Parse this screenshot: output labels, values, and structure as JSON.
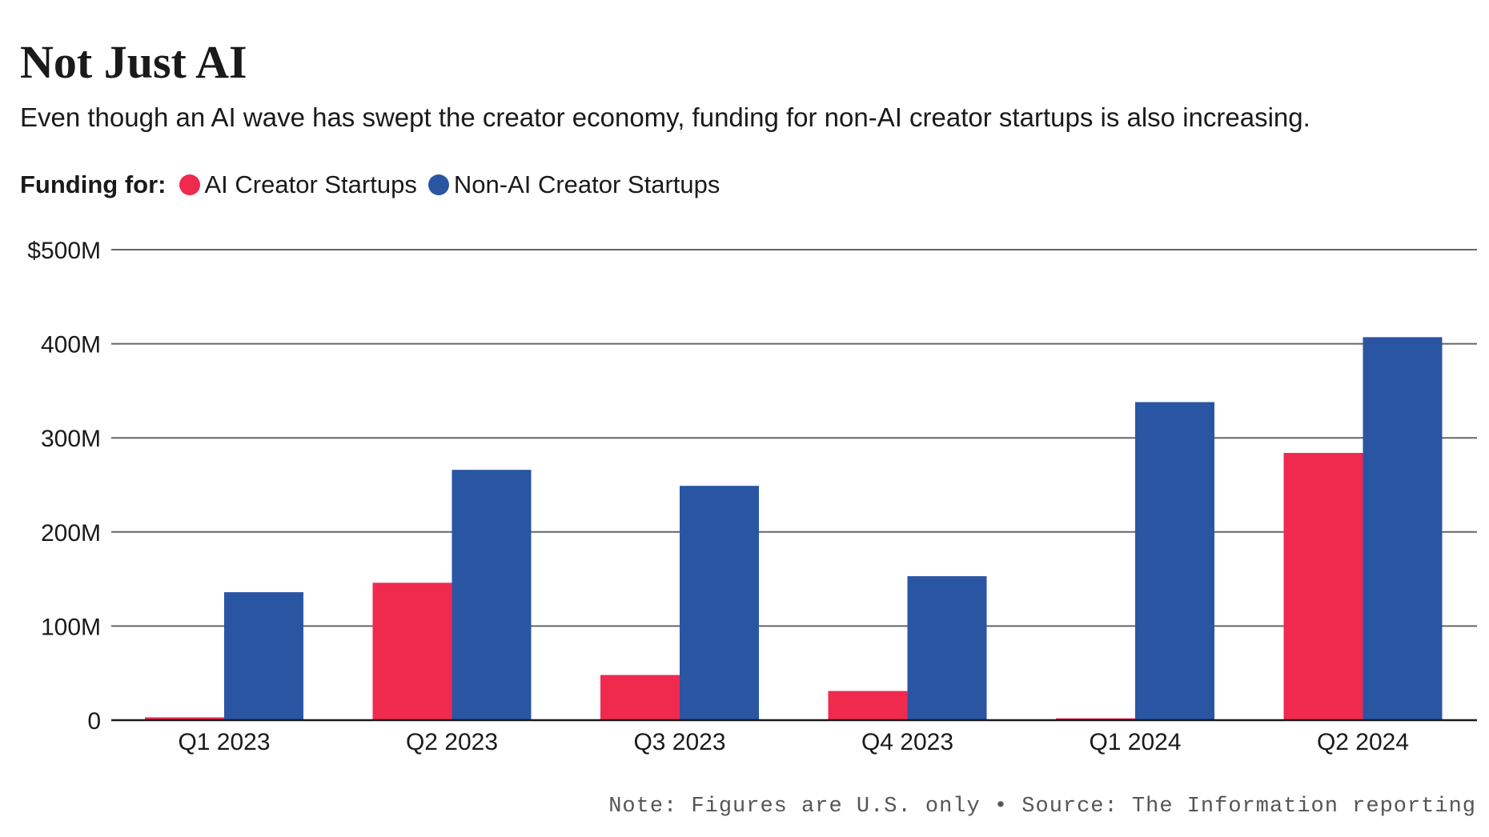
{
  "chart_data": {
    "type": "bar",
    "title": "Not Just AI",
    "subtitle": "Even though an AI wave has swept the creator economy, funding for non-AI creator startups is also increasing.",
    "legend_label": "Funding for:",
    "legend_placement": "top-left",
    "categories": [
      "Q1 2023",
      "Q2 2023",
      "Q3 2023",
      "Q4 2023",
      "Q1 2024",
      "Q2 2024"
    ],
    "series": [
      {
        "name": "AI Creator Startups",
        "color": "#f0294f",
        "values": [
          3,
          146,
          48,
          31,
          2,
          284
        ]
      },
      {
        "name": "Non-AI Creator Startups",
        "color": "#2a55a2",
        "values": [
          136,
          266,
          249,
          153,
          338,
          407
        ]
      }
    ],
    "yticks": [
      {
        "value": 0,
        "label": "0"
      },
      {
        "value": 100,
        "label": "100M"
      },
      {
        "value": 200,
        "label": "200M"
      },
      {
        "value": 300,
        "label": "300M"
      },
      {
        "value": 400,
        "label": "400M"
      },
      {
        "value": 500,
        "label": "$500M"
      }
    ],
    "ylim": [
      0,
      500
    ],
    "grid": true,
    "note": "Note: Figures are U.S. only • Source: The Information reporting"
  }
}
